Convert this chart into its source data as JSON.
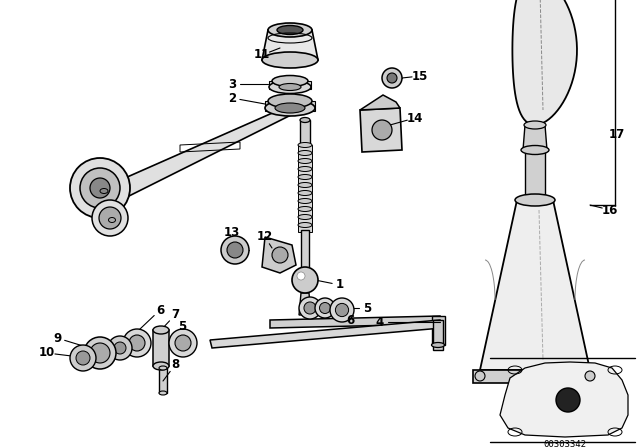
{
  "bg_color": "#ffffff",
  "line_color": "#000000",
  "fig_width": 6.4,
  "fig_height": 4.48,
  "dpi": 100,
  "catalog_number": "00303342"
}
